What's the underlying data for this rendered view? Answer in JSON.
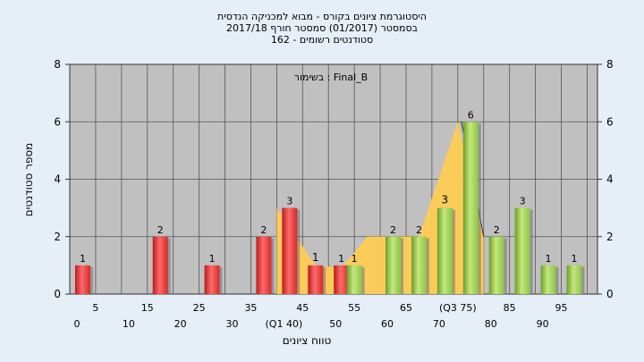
{
  "header": {
    "line1": "היסטוגרמת ציונים בקורס - מבוא למכניקה הנדסית",
    "line2": "בסמסטר  (01/2017)  סמסטר חורף 2017/18",
    "line3": "סטודנטים רשומים - 162"
  },
  "chart_data": {
    "type": "bar",
    "legend_text": "בשימור : Final_B",
    "ylabel": "מספר סטודנטים",
    "xlabel": "טווח ציונים",
    "ylim": [
      0,
      8
    ],
    "yticks": [
      0,
      2,
      4,
      6,
      8
    ],
    "x_labels_upper": [
      "5",
      "15",
      "25",
      "35",
      "45",
      "55",
      "65",
      "(Q3 75)",
      "85",
      "95"
    ],
    "x_labels_lower": [
      "0",
      "10",
      "20",
      "30",
      "(Q1 40)",
      "50",
      "60",
      "70",
      "80",
      "90"
    ],
    "bins": [
      {
        "start": 0,
        "value": 1,
        "color": "red"
      },
      {
        "start": 5,
        "value": 0,
        "color": "none"
      },
      {
        "start": 10,
        "value": 0,
        "color": "none"
      },
      {
        "start": 15,
        "value": 2,
        "color": "red"
      },
      {
        "start": 20,
        "value": 0,
        "color": "none"
      },
      {
        "start": 25,
        "value": 1,
        "color": "red"
      },
      {
        "start": 30,
        "value": 0,
        "color": "none"
      },
      {
        "start": 35,
        "value": 2,
        "color": "red"
      },
      {
        "start": 40,
        "value": 3,
        "color": "red"
      },
      {
        "start": 45,
        "value": 1,
        "color": "red"
      },
      {
        "start": 50,
        "value": 1,
        "color": "red"
      },
      {
        "start": 52.5,
        "value": 1,
        "color": "green"
      },
      {
        "start": 60,
        "value": 2,
        "color": "green"
      },
      {
        "start": 65,
        "value": 2,
        "color": "green"
      },
      {
        "start": 70,
        "value": 3,
        "color": "green"
      },
      {
        "start": 75,
        "value": 6,
        "color": "green"
      },
      {
        "start": 80,
        "value": 2,
        "color": "green"
      },
      {
        "start": 85,
        "value": 3,
        "color": "green"
      },
      {
        "start": 90,
        "value": 1,
        "color": "green"
      },
      {
        "start": 95,
        "value": 1,
        "color": "green"
      }
    ],
    "highlighted_labels": [
      {
        "bin_start": 45,
        "text": "1"
      },
      {
        "bin_start": 70,
        "text": "3"
      }
    ],
    "area_overlay_points": [
      {
        "x": 40,
        "y": 3
      },
      {
        "x": 47.5,
        "y": 1
      },
      {
        "x": 52.5,
        "y": 0.9
      },
      {
        "x": 57.5,
        "y": 2
      },
      {
        "x": 67.5,
        "y": 2
      },
      {
        "x": 75,
        "y": 6
      },
      {
        "x": 80,
        "y": 2
      }
    ],
    "colors": {
      "red": "#e03a3a",
      "green": "#8bc34a",
      "area": "#ffcc55",
      "plot_bg": "#c0c0c0",
      "page_bg": "#e6eef7"
    }
  }
}
